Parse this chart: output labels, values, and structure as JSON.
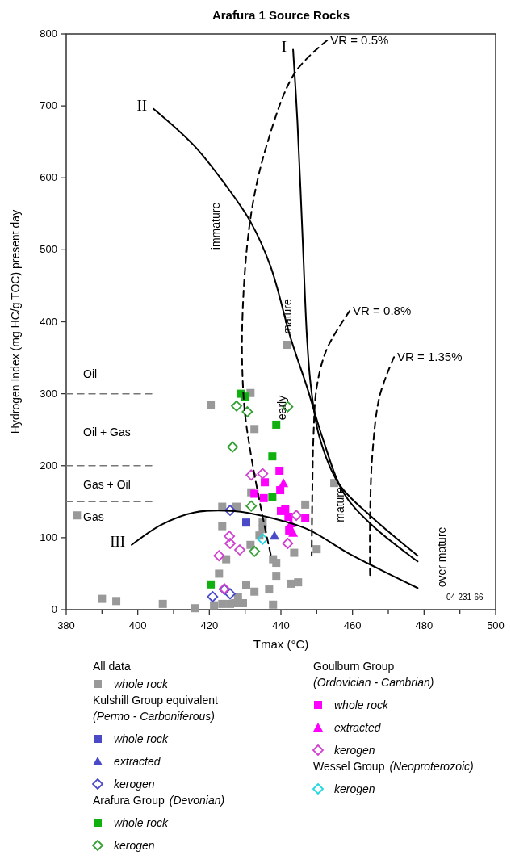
{
  "chart_data": {
    "type": "scatter",
    "title": "Arafura 1 Source Rocks",
    "xlabel": "Tmax (°C)",
    "ylabel": "Hydrogen Index (mg HC/g TOC) present day",
    "xlim": [
      380,
      500
    ],
    "ylim": [
      0,
      800
    ],
    "xticks": [
      380,
      {
        "value": 390,
        "label": null
      },
      400,
      {
        "value": 410,
        "label": null
      },
      420,
      {
        "value": 430,
        "label": null
      },
      440,
      {
        "value": 450,
        "label": null
      },
      460,
      {
        "value": 470,
        "label": null
      },
      480,
      {
        "value": 490,
        "label": null
      },
      500
    ],
    "yticks": [
      0,
      100,
      200,
      300,
      400,
      500,
      600,
      700,
      800
    ],
    "grid": false,
    "legend": "bottom",
    "series": [
      {
        "name": "whole rock",
        "color": "#999999",
        "marker": "square",
        "x": [
          383,
          390,
          394,
          407,
          416,
          420.4,
          423.6,
          427.6,
          423.6,
          432.6,
          431.7,
          434.9,
          434.9,
          434,
          431.5,
          424.7,
          422.7,
          430.3,
          432.6,
          436.7,
          437.8,
          437.8,
          421.3,
          423.6,
          425.8,
          427.2,
          429.4,
          428,
          431.5,
          441.6,
          454.9,
          446.8,
          450,
          443.7,
          442.8,
          444.8,
          438.7,
          438.7
        ],
        "values": [
          131,
          15,
          12,
          8,
          2,
          284,
          143,
          143,
          116,
          251,
          163,
          121,
          112,
          103,
          90,
          70,
          50,
          34,
          25,
          28,
          70,
          7,
          6,
          8,
          8,
          9,
          9,
          17,
          301,
          368,
          176,
          146,
          84,
          79,
          36,
          38,
          65,
          47
        ]
      },
      {
        "name": "whole rock",
        "color": "#4a4ac8",
        "marker": "square",
        "x": [
          430.3
        ],
        "values": [
          121
        ]
      },
      {
        "name": "extracted",
        "color": "#4a4ac8",
        "marker": "triangle",
        "x": [
          438.2
        ],
        "values": [
          103
        ]
      },
      {
        "name": "kerogen",
        "color": "#4a4ac8",
        "marker": "diamond",
        "x": [
          425.8,
          420.9,
          424.2,
          425.8
        ],
        "values": [
          138,
          18,
          28,
          22
        ]
      },
      {
        "name": "whole rock",
        "color": "#11b011",
        "marker": "square",
        "x": [
          428.8,
          430,
          438.7,
          437.6,
          437.6,
          420.4
        ],
        "values": [
          300,
          296,
          257,
          213,
          157,
          35
        ]
      },
      {
        "name": "kerogen",
        "color": "#33a033",
        "marker": "diamond",
        "x": [
          427.6,
          430.6,
          426.5,
          431.7,
          432.6,
          441.9
        ],
        "values": [
          283,
          275,
          226,
          144,
          81,
          282
        ]
      },
      {
        "name": "whole rock",
        "color": "#ff00ff",
        "marker": "square",
        "x": [
          439.6,
          435.5,
          432.6,
          435.2,
          439.8,
          441.2,
          442.1,
          446.8,
          440,
          442.3
        ],
        "values": [
          193,
          177,
          161,
          155,
          166,
          140,
          129,
          127,
          137,
          110
        ]
      },
      {
        "name": "extracted",
        "color": "#ff00ff",
        "marker": "triangle",
        "x": [
          440.7,
          442.8,
          443.4
        ],
        "values": [
          176,
          120,
          107
        ]
      },
      {
        "name": "kerogen",
        "color": "#d040d0",
        "marker": "diamond",
        "x": [
          431.7,
          434.9,
          425.6,
          425.8,
          428.5,
          422.7,
          424.2,
          441.9,
          444.3
        ],
        "values": [
          187,
          189,
          102,
          92,
          83,
          75,
          29,
          92,
          131
        ]
      },
      {
        "name": "kerogen",
        "color": "#22d8e0",
        "marker": "diamond",
        "x": [
          434.9
        ],
        "values": [
          98
        ]
      },
      {
        "name": "I",
        "type": "line",
        "color": "#000000",
        "line_style": "solid",
        "marker": "none",
        "x": [
          443.4,
          444.6,
          446.1,
          447.3,
          448.4,
          450.7,
          456.3,
          465.3,
          478.2
        ],
        "values": [
          778,
          679,
          511,
          376,
          309,
          241,
          174,
          129,
          75
        ]
      },
      {
        "name": "II",
        "type": "line",
        "color": "#000000",
        "line_style": "solid",
        "marker": "none",
        "x": [
          404.4,
          415.7,
          424.7,
          431.5,
          437.1,
          442.8,
          447.3,
          451.8,
          457.4,
          465.3,
          478.2
        ],
        "values": [
          696,
          645,
          589,
          539,
          477,
          376,
          309,
          236,
          163,
          118,
          67
        ]
      },
      {
        "name": "III",
        "type": "line",
        "color": "#000000",
        "line_style": "solid",
        "marker": "none",
        "x": [
          398.3,
          406.6,
          415.7,
          427,
          436,
          447.3,
          458.6,
          467.6,
          478.2
        ],
        "values": [
          90,
          118,
          135,
          137,
          129,
          112,
          79,
          56,
          30
        ]
      },
      {
        "name": "VR = 0.5%",
        "type": "line",
        "color": "#000000",
        "line_style": "dashed",
        "marker": "none",
        "x": [
          452.9,
          443.9,
          436,
          431.5,
          429.2,
          429.7,
          431.5,
          434.9,
          437.3
        ],
        "values": [
          791,
          746,
          645,
          544,
          398,
          286,
          219,
          129,
          73
        ]
      },
      {
        "name": "VR = 0.8%",
        "type": "line",
        "color": "#000000",
        "line_style": "dashed",
        "marker": "none",
        "x": [
          459.2,
          452.9,
          450,
          449.1,
          448.8,
          448.6
        ],
        "values": [
          415,
          363,
          309,
          241,
          174,
          75
        ]
      },
      {
        "name": "VR = 1.35%",
        "type": "line",
        "color": "#000000",
        "line_style": "dashed",
        "marker": "none",
        "x": [
          471.6,
          467.6,
          465.6,
          464.9,
          464.9
        ],
        "values": [
          351,
          297,
          219,
          129,
          48
        ]
      },
      {
        "type": "line",
        "color": "#777777",
        "line_style": "dashed",
        "marker": "none",
        "x": [
          380,
          404
        ],
        "values": [
          300,
          300
        ]
      },
      {
        "type": "line",
        "color": "#777777",
        "line_style": "dashed",
        "marker": "none",
        "x": [
          380,
          404
        ],
        "values": [
          200,
          200
        ]
      },
      {
        "type": "line",
        "color": "#777777",
        "line_style": "dashed",
        "marker": "none",
        "x": [
          380,
          404
        ],
        "values": [
          150,
          150
        ]
      }
    ],
    "annotations": [
      "Oil",
      "Oil + Gas",
      "Gas + Oil",
      "Gas",
      "04-231-66",
      "immature",
      "early",
      "mature",
      "mature",
      "over mature",
      "All data",
      "Kulshill Group equivalent",
      "(Permo - Carboniferous)",
      "Arafura Group",
      "(Devonian)",
      "Goulburn Group",
      "(Ordovician - Cambrian)",
      "Wessel Group",
      "(Neoproterozoic)"
    ]
  }
}
